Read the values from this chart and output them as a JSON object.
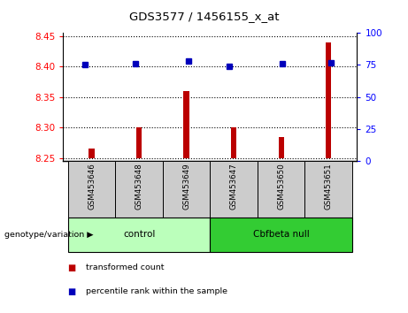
{
  "title": "GDS3577 / 1456155_x_at",
  "samples": [
    "GSM453646",
    "GSM453648",
    "GSM453649",
    "GSM453647",
    "GSM453650",
    "GSM453651"
  ],
  "bar_values": [
    8.265,
    8.3,
    8.36,
    8.3,
    8.285,
    8.44
  ],
  "dot_values": [
    75,
    76,
    78,
    74,
    76,
    77
  ],
  "bar_bottom": 8.25,
  "ylim_left": [
    8.245,
    8.455
  ],
  "ylim_right": [
    0,
    100
  ],
  "yticks_left": [
    8.25,
    8.3,
    8.35,
    8.4,
    8.45
  ],
  "yticks_right": [
    0,
    25,
    50,
    75,
    100
  ],
  "bar_color": "#bb0000",
  "dot_color": "#0000bb",
  "group_boundaries": [
    [
      -0.5,
      2.5,
      "control",
      "#bbffbb"
    ],
    [
      2.5,
      5.5,
      "Cbfbeta null",
      "#33cc33"
    ]
  ],
  "group_row_label": "genotype/variation",
  "legend_items": [
    {
      "color": "#bb0000",
      "label": "transformed count"
    },
    {
      "color": "#0000bb",
      "label": "percentile rank within the sample"
    }
  ],
  "sample_bg_color": "#cccccc",
  "dot_x_offsets": [
    -0.15,
    -0.08,
    0.05,
    -0.1,
    0.02,
    0.05
  ]
}
